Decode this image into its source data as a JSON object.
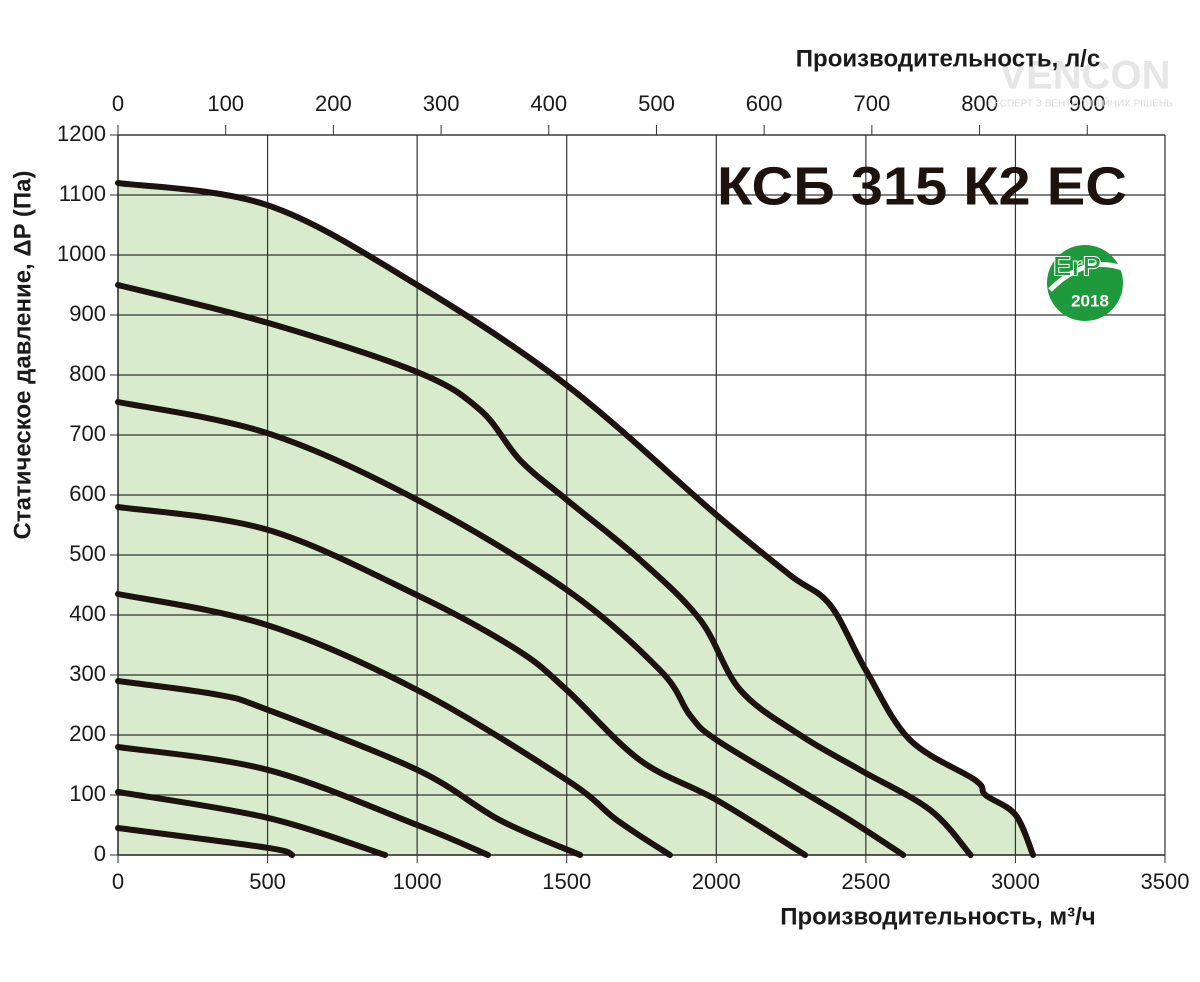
{
  "chart_data": {
    "type": "line",
    "title": "КСБ 315 К2 ЕС",
    "xlabel": "Производительность, м³/ч",
    "x2label": "Производительность, л/с",
    "ylabel": "Статическое давление, ΔP (Па)",
    "badge": {
      "label": "ErP",
      "year": "2018",
      "color": "#1e9a3c"
    },
    "watermark": {
      "brand": "VENCON",
      "slogan": "ЕКСПЕРТ З ВЕНТИЛЯЦІЙНИХ РІШЕНЬ"
    },
    "xlim": [
      0,
      3500
    ],
    "xticks": [
      0,
      500,
      1000,
      1500,
      2000,
      2500,
      3000,
      3500
    ],
    "x2lim": [
      0,
      972.2
    ],
    "x2ticks": [
      0,
      100,
      200,
      300,
      400,
      500,
      600,
      700,
      800,
      900
    ],
    "ylim": [
      0,
      1200
    ],
    "yticks": [
      0,
      100,
      200,
      300,
      400,
      500,
      600,
      700,
      800,
      900,
      1000,
      1100,
      1200
    ],
    "grid": true,
    "area_color": "#d8ebcd",
    "series": [
      {
        "color": "#1c120e",
        "x": [
          0,
          500,
          1000,
          1500,
          2000,
          2245,
          2380,
          2500,
          2647,
          2865,
          2900,
          3000,
          3059
        ],
        "values": [
          1120,
          1083,
          950,
          783,
          567,
          467,
          417,
          308,
          192,
          125,
          100,
          67,
          0
        ]
      },
      {
        "color": "#1c120e",
        "x": [
          0,
          500,
          1000,
          1210,
          1344,
          1500,
          1745,
          1946,
          2080,
          2280,
          2480,
          2715,
          2850
        ],
        "values": [
          950,
          887,
          805,
          742,
          658,
          592,
          492,
          392,
          275,
          200,
          142,
          75,
          0
        ]
      },
      {
        "color": "#1c120e",
        "x": [
          0,
          500,
          1000,
          1500,
          1812,
          1912,
          2000,
          2280,
          2447,
          2625
        ],
        "values": [
          755,
          703,
          592,
          442,
          308,
          233,
          192,
          108,
          58,
          0
        ]
      },
      {
        "color": "#1c120e",
        "x": [
          0,
          500,
          1000,
          1334,
          1500,
          1745,
          2000,
          2297
        ],
        "values": [
          580,
          542,
          433,
          342,
          275,
          158,
          92,
          0
        ]
      },
      {
        "color": "#1c120e",
        "x": [
          0,
          500,
          1000,
          1500,
          1668,
          1845
        ],
        "values": [
          435,
          383,
          275,
          125,
          58,
          0
        ]
      },
      {
        "color": "#1c120e",
        "x": [
          0,
          335,
          500,
          1000,
          1277,
          1545
        ],
        "values": [
          290,
          267,
          242,
          142,
          58,
          0
        ]
      },
      {
        "color": "#1c120e",
        "x": [
          0,
          500,
          1000,
          1237
        ],
        "values": [
          180,
          142,
          50,
          0
        ]
      },
      {
        "color": "#1c120e",
        "x": [
          0,
          500,
          893
        ],
        "values": [
          105,
          62,
          0
        ]
      },
      {
        "color": "#1c120e",
        "x": [
          0,
          500,
          582
        ],
        "values": [
          45,
          12,
          0
        ]
      }
    ]
  }
}
